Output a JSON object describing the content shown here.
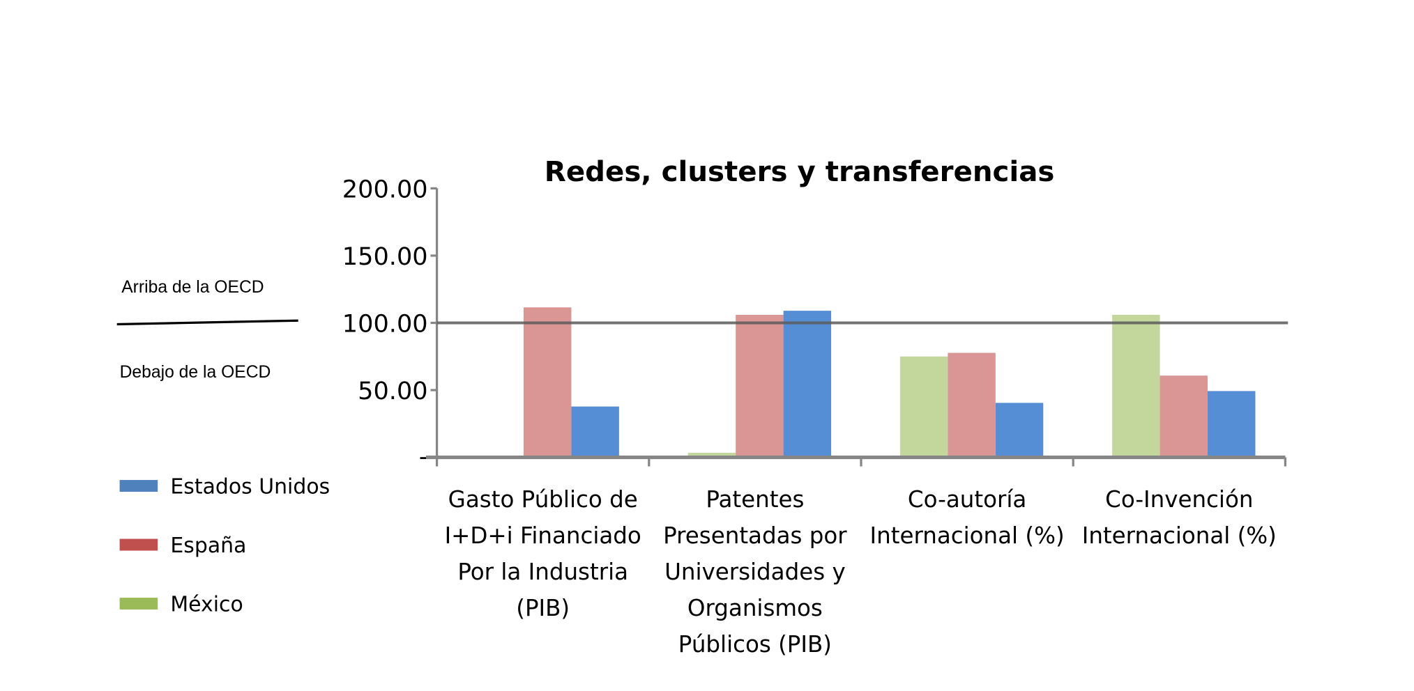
{
  "chart_data": {
    "type": "bar",
    "title": "Redes, clusters y transferencias",
    "categories": [
      [
        "Gasto Público de",
        "I+D+i Financiado",
        "Por la Industria",
        "(PIB)"
      ],
      [
        "Patentes",
        "Presentadas por",
        "Universidades y",
        "Organismos",
        "Públicos  (PIB)"
      ],
      [
        "Co-autoría",
        "Internacional (%)"
      ],
      [
        "Co-Invención",
        "Internacional (%)"
      ]
    ],
    "series": [
      {
        "name": "México",
        "values": [
          0,
          3.4,
          75,
          106
        ],
        "color": "#c3d69b",
        "legend_color": "#9bbb59"
      },
      {
        "name": "España",
        "values": [
          111.5,
          106,
          77.7,
          60.8
        ],
        "color": "#d99694",
        "legend_color": "#c0504d"
      },
      {
        "name": "Estados Unidos",
        "values": [
          37.8,
          109,
          40.5,
          49.3
        ],
        "color": "#558ed5",
        "legend_color": "#4f81bd"
      }
    ],
    "legend_order": [
      "Estados Unidos",
      "España",
      "México"
    ],
    "legend_placement": "bottom-left",
    "yticks": [
      0,
      50,
      100,
      150,
      200
    ],
    "ytick_labels": [
      "-",
      "50.00",
      "100.00",
      "150.00",
      "200.00"
    ],
    "ylim": [
      0,
      200
    ],
    "reference_line": 100,
    "annotations": {
      "above": "Arriba de la OECD",
      "below": "Debajo de la OECD"
    },
    "grid": false
  }
}
